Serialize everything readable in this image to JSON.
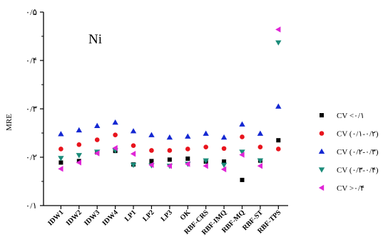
{
  "chart_data": {
    "type": "scatter",
    "title": "Ni",
    "xlabel": "",
    "ylabel": "MRE",
    "ylim": [
      0.1,
      0.5
    ],
    "yticks": [
      0.1,
      0.2,
      0.3,
      0.4,
      0.5
    ],
    "ytick_labels": [
      "۰/۱",
      "۰/۲",
      "۰/۳",
      "۰/۴",
      "۰/۵"
    ],
    "grid": false,
    "legend_position": "right",
    "categories": [
      "IDW1",
      "IDW2",
      "IDW3",
      "IDW4",
      "LP1",
      "LP2",
      "LP3",
      "OK",
      "RBF-CRS",
      "RBF-IMQ",
      "RBF-MQ",
      "RBF-ST",
      "RBF-TPS"
    ],
    "series": [
      {
        "name": "CV <۰/۱",
        "marker": "square",
        "color": "#000000",
        "values": [
          0.189,
          0.192,
          0.21,
          0.213,
          0.185,
          0.192,
          0.195,
          0.197,
          0.191,
          0.191,
          0.153,
          0.193,
          0.235
        ]
      },
      {
        "name": "CV (۰/۱-۰/۲)",
        "marker": "circle",
        "color": "#e8141d",
        "values": [
          0.217,
          0.226,
          0.236,
          0.246,
          0.224,
          0.214,
          0.214,
          0.217,
          0.221,
          0.218,
          0.242,
          0.221,
          0.217
        ]
      },
      {
        "name": "CV (۰/۲-۰/۳)",
        "marker": "triangle-up",
        "color": "#1428d2",
        "values": [
          0.248,
          0.256,
          0.265,
          0.272,
          0.254,
          0.246,
          0.241,
          0.243,
          0.249,
          0.241,
          0.268,
          0.249,
          0.305
        ]
      },
      {
        "name": "CV (۰/۳-۰/۴)",
        "marker": "triangle-down",
        "color": "#1b8c7a",
        "values": [
          0.198,
          0.204,
          0.211,
          0.214,
          0.184,
          0.183,
          0.182,
          0.186,
          0.193,
          0.184,
          0.211,
          0.193,
          0.437
        ]
      },
      {
        "name": "CV >۰/۴",
        "marker": "triangle-left",
        "color": "#e025d6",
        "values": [
          0.176,
          0.189,
          0.208,
          0.219,
          0.207,
          0.184,
          0.182,
          0.186,
          0.182,
          0.175,
          0.205,
          0.182,
          0.464
        ]
      }
    ]
  }
}
